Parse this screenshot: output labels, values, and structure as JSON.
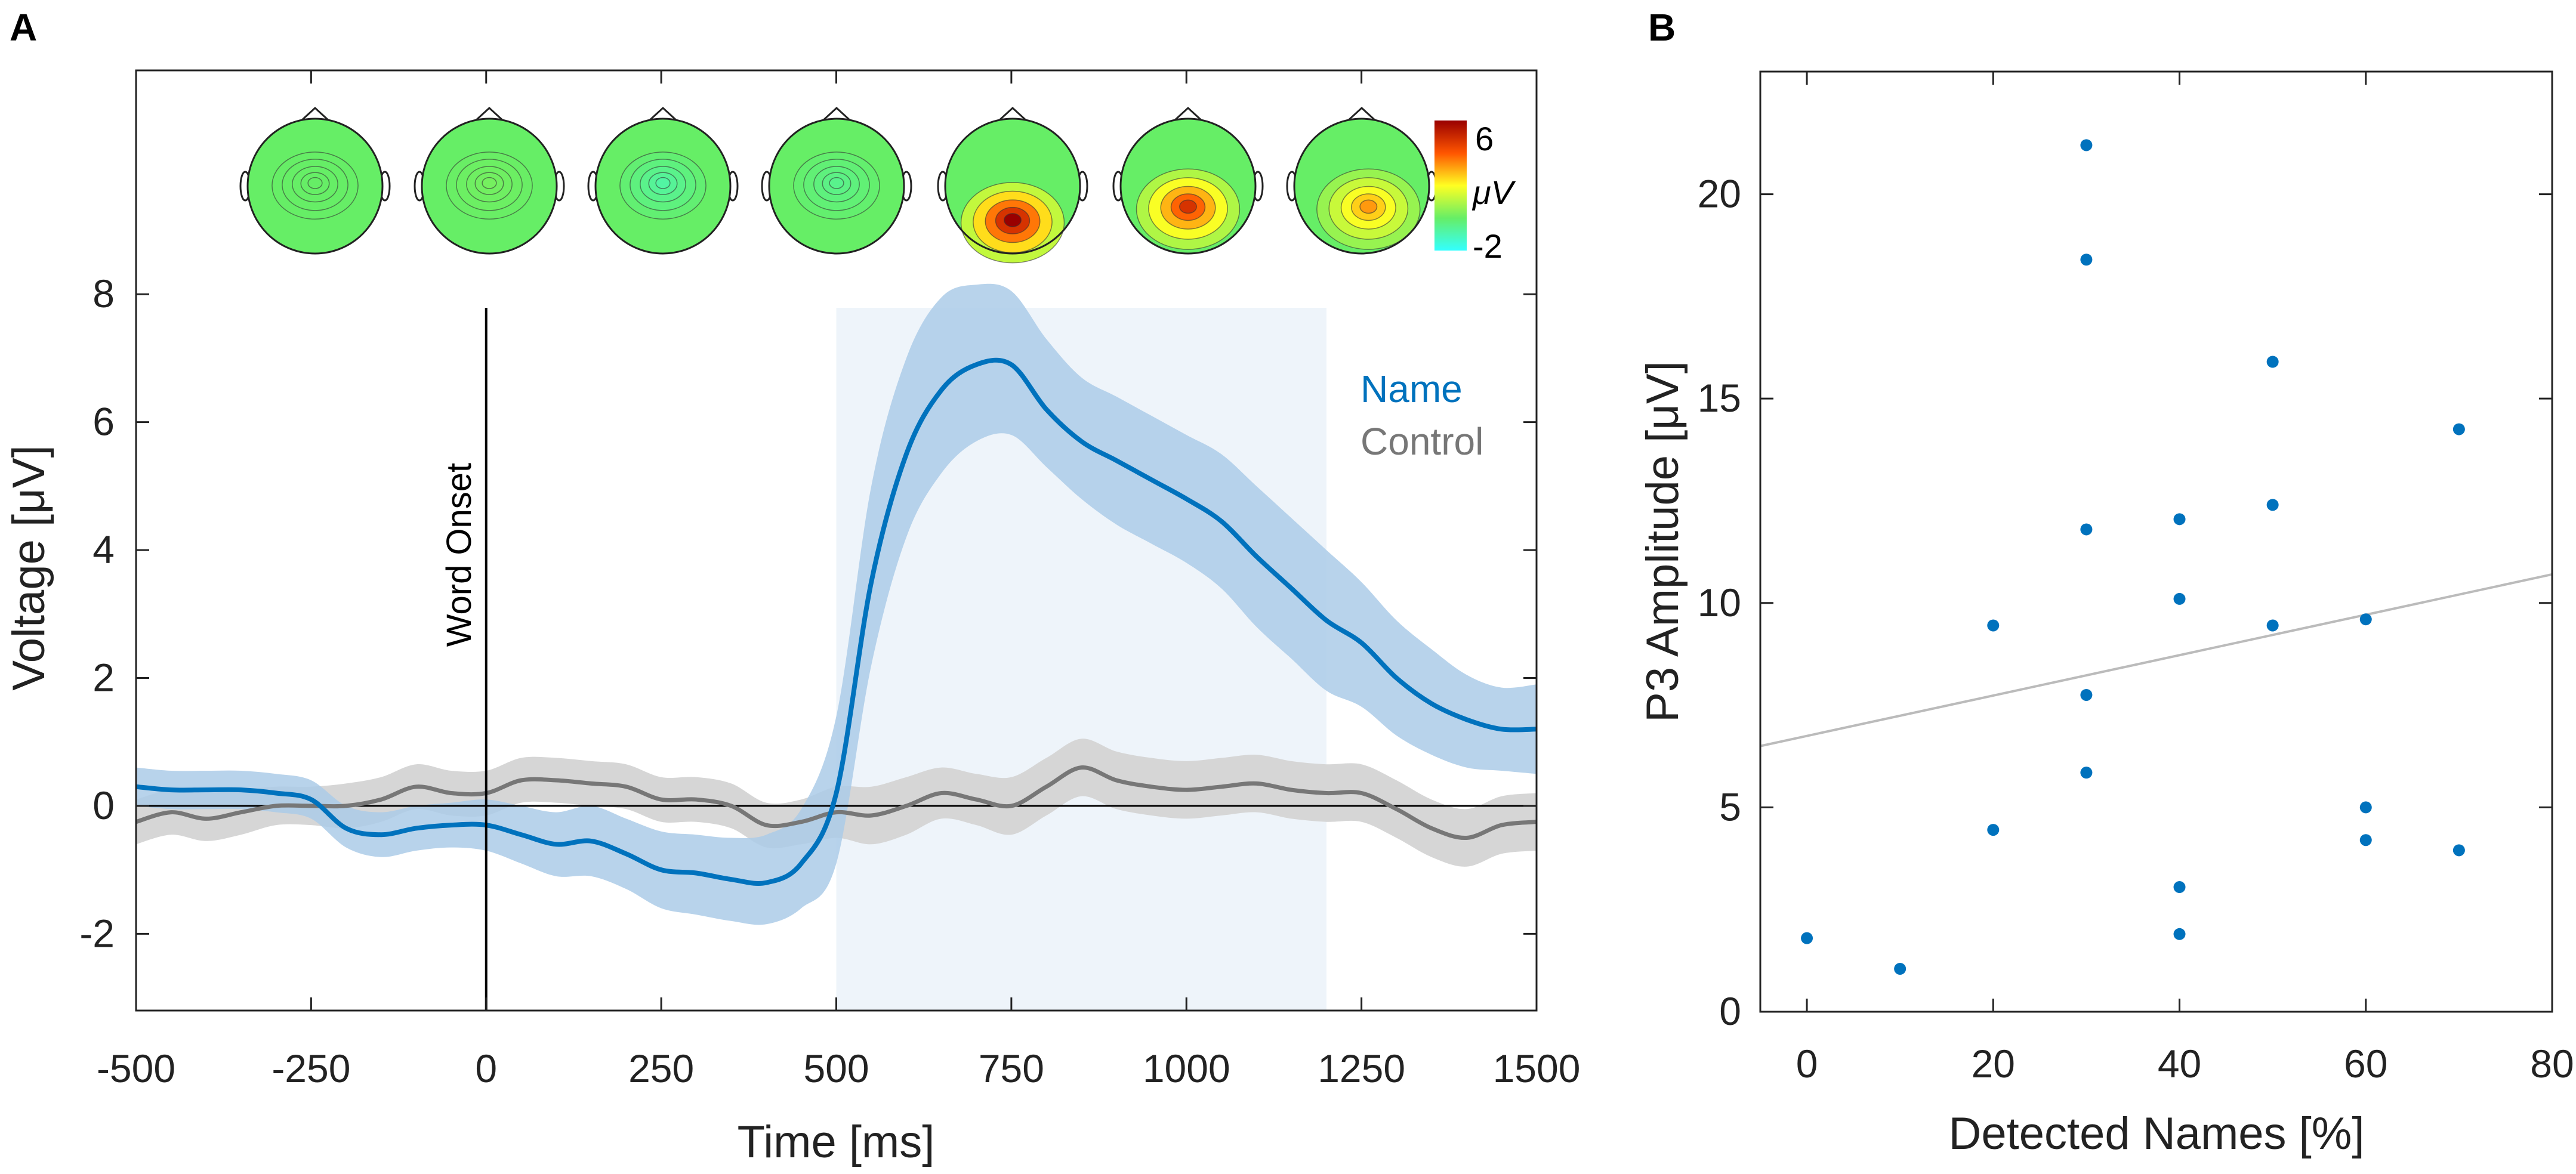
{
  "panels": {
    "a_label": "A",
    "b_label": "B"
  },
  "colors": {
    "name": "#0072bd",
    "name_band": "#abcbe8",
    "control": "#777777",
    "control_band": "#d6d6d6",
    "window": "#eef4fa",
    "fit": "#bbbbbb"
  },
  "topomaps": {
    "colorbar_max": "6",
    "colorbar_min": "-2",
    "colorbar_unit": "μV",
    "maps": [
      {
        "peak_uv": 0.0,
        "hot": [
          0.0,
          0.0
        ]
      },
      {
        "peak_uv": 0.2,
        "hot": [
          0.0,
          0.0
        ]
      },
      {
        "peak_uv": -0.8,
        "hot": [
          0.0,
          0.0
        ]
      },
      {
        "peak_uv": -0.5,
        "hot": [
          0.0,
          0.0
        ]
      },
      {
        "peak_uv": 6.0,
        "hot": [
          0.0,
          0.55
        ]
      },
      {
        "peak_uv": 4.8,
        "hot": [
          0.0,
          0.35
        ]
      },
      {
        "peak_uv": 3.2,
        "hot": [
          0.1,
          0.35
        ]
      }
    ]
  },
  "chart_data": [
    {
      "type": "line",
      "panel": "A",
      "xlabel": "Time [ms]",
      "ylabel": "Voltage [μV]",
      "xlim": [
        -500,
        1500
      ],
      "ylim": [
        -3.2,
        11.5
      ],
      "xticks": [
        -500,
        -250,
        0,
        250,
        500,
        750,
        1000,
        1250,
        1500
      ],
      "xtick_labels": [
        "-500",
        "-250",
        "0",
        "250",
        "500",
        "750",
        "1000",
        "1250",
        "1500"
      ],
      "yticks": [
        -2,
        0,
        2,
        4,
        6,
        8
      ],
      "ytick_labels": [
        "-2",
        "0",
        "2",
        "4",
        "6",
        "8"
      ],
      "onset": {
        "x": 0,
        "label": "Word Onset"
      },
      "analysis_window": [
        500,
        1200
      ],
      "legend": "top-right",
      "series": [
        {
          "name": "Name",
          "x": [
            -500,
            -450,
            -400,
            -350,
            -300,
            -250,
            -200,
            -150,
            -100,
            -50,
            0,
            50,
            100,
            150,
            200,
            250,
            300,
            350,
            400,
            450,
            500,
            550,
            600,
            650,
            700,
            750,
            800,
            850,
            900,
            950,
            1000,
            1050,
            1100,
            1150,
            1200,
            1250,
            1300,
            1350,
            1400,
            1450,
            1500
          ],
          "y": [
            0.3,
            0.25,
            0.25,
            0.25,
            0.2,
            0.1,
            -0.35,
            -0.45,
            -0.35,
            -0.3,
            -0.3,
            -0.45,
            -0.6,
            -0.55,
            -0.75,
            -1.0,
            -1.05,
            -1.15,
            -1.2,
            -0.9,
            0.2,
            3.5,
            5.5,
            6.5,
            6.9,
            6.9,
            6.2,
            5.7,
            5.4,
            5.1,
            4.8,
            4.45,
            3.9,
            3.4,
            2.9,
            2.55,
            2.0,
            1.6,
            1.35,
            1.2,
            1.2
          ],
          "upper": [
            0.6,
            0.55,
            0.55,
            0.55,
            0.5,
            0.4,
            0.0,
            -0.1,
            0.0,
            0.05,
            0.1,
            0.0,
            -0.1,
            0.0,
            -0.2,
            -0.4,
            -0.45,
            -0.5,
            -0.45,
            -0.05,
            1.4,
            5.0,
            7.0,
            7.95,
            8.15,
            8.05,
            7.3,
            6.7,
            6.4,
            6.1,
            5.8,
            5.5,
            5.0,
            4.5,
            4.0,
            3.5,
            2.9,
            2.45,
            2.05,
            1.85,
            1.9
          ],
          "lower": [
            0.0,
            -0.05,
            -0.05,
            -0.05,
            -0.1,
            -0.2,
            -0.65,
            -0.8,
            -0.7,
            -0.65,
            -0.7,
            -0.9,
            -1.1,
            -1.1,
            -1.3,
            -1.6,
            -1.7,
            -1.8,
            -1.85,
            -1.6,
            -0.9,
            2.2,
            4.2,
            5.2,
            5.7,
            5.8,
            5.3,
            4.8,
            4.4,
            4.1,
            3.8,
            3.4,
            2.8,
            2.3,
            1.8,
            1.55,
            1.1,
            0.8,
            0.6,
            0.55,
            0.5
          ]
        },
        {
          "name": "Control",
          "x": [
            -500,
            -450,
            -400,
            -350,
            -300,
            -250,
            -200,
            -150,
            -100,
            -50,
            0,
            50,
            100,
            150,
            200,
            250,
            300,
            350,
            400,
            450,
            500,
            550,
            600,
            650,
            700,
            750,
            800,
            850,
            900,
            950,
            1000,
            1050,
            1100,
            1150,
            1200,
            1250,
            1300,
            1350,
            1400,
            1450,
            1500
          ],
          "y": [
            -0.25,
            -0.1,
            -0.2,
            -0.1,
            0.0,
            0.0,
            0.0,
            0.1,
            0.3,
            0.2,
            0.2,
            0.4,
            0.4,
            0.35,
            0.3,
            0.1,
            0.1,
            0.0,
            -0.3,
            -0.25,
            -0.1,
            -0.15,
            0.0,
            0.2,
            0.1,
            0.0,
            0.3,
            0.6,
            0.4,
            0.3,
            0.25,
            0.3,
            0.35,
            0.25,
            0.2,
            0.2,
            -0.05,
            -0.35,
            -0.5,
            -0.3,
            -0.25
          ],
          "upper": [
            0.1,
            0.25,
            0.2,
            0.25,
            0.3,
            0.3,
            0.35,
            0.45,
            0.65,
            0.55,
            0.55,
            0.75,
            0.75,
            0.7,
            0.65,
            0.45,
            0.45,
            0.35,
            0.05,
            0.1,
            0.3,
            0.3,
            0.45,
            0.6,
            0.5,
            0.45,
            0.75,
            1.05,
            0.85,
            0.75,
            0.7,
            0.75,
            0.8,
            0.7,
            0.65,
            0.65,
            0.4,
            0.1,
            -0.05,
            0.15,
            0.2
          ],
          "lower": [
            -0.6,
            -0.45,
            -0.55,
            -0.45,
            -0.3,
            -0.3,
            -0.35,
            -0.25,
            -0.05,
            -0.15,
            -0.15,
            0.05,
            0.05,
            0.0,
            -0.05,
            -0.25,
            -0.25,
            -0.35,
            -0.65,
            -0.6,
            -0.5,
            -0.6,
            -0.45,
            -0.2,
            -0.3,
            -0.45,
            -0.15,
            0.15,
            -0.05,
            -0.15,
            -0.2,
            -0.15,
            -0.1,
            -0.2,
            -0.25,
            -0.25,
            -0.5,
            -0.8,
            -0.95,
            -0.75,
            -0.7
          ]
        }
      ]
    },
    {
      "type": "scatter",
      "panel": "B",
      "xlabel": "Detected Names [%]",
      "ylabel": "P3 Amplitude [μV]",
      "xlim": [
        -5,
        80
      ],
      "ylim": [
        0,
        23
      ],
      "xticks": [
        0,
        20,
        40,
        60,
        80
      ],
      "xtick_labels": [
        "0",
        "20",
        "40",
        "60",
        "80"
      ],
      "yticks": [
        0,
        5,
        10,
        15,
        20
      ],
      "ytick_labels": [
        "0",
        "5",
        "10",
        "15",
        "20"
      ],
      "points": [
        [
          0,
          1.8
        ],
        [
          10,
          1.05
        ],
        [
          20,
          9.45
        ],
        [
          20,
          4.45
        ],
        [
          30,
          21.2
        ],
        [
          30,
          18.4
        ],
        [
          30,
          11.8
        ],
        [
          30,
          7.75
        ],
        [
          30,
          5.85
        ],
        [
          40,
          12.05
        ],
        [
          40,
          10.1
        ],
        [
          40,
          3.05
        ],
        [
          40,
          1.9
        ],
        [
          50,
          15.9
        ],
        [
          50,
          12.4
        ],
        [
          50,
          9.45
        ],
        [
          60,
          9.6
        ],
        [
          60,
          5.0
        ],
        [
          60,
          4.2
        ],
        [
          70,
          14.25
        ],
        [
          70,
          3.95
        ]
      ],
      "fit_line": {
        "x": [
          -5,
          80
        ],
        "y": [
          6.5,
          10.7
        ]
      }
    }
  ]
}
